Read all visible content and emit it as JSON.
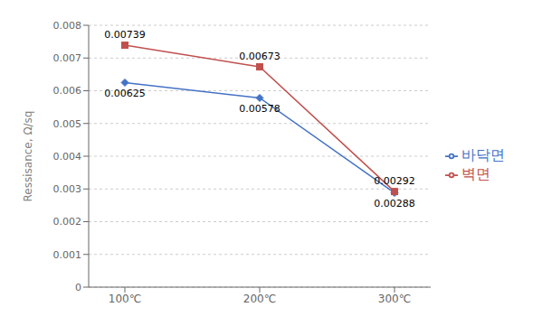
{
  "chart_data": {
    "type": "line",
    "categories": [
      "100℃",
      "200℃",
      "300℃"
    ],
    "series": [
      {
        "name": "바닥면",
        "color": "#4472C4",
        "marker": "diamond",
        "values": [
          0.00625,
          0.00578,
          0.00288
        ]
      },
      {
        "name": "벽면",
        "color": "#C0504D",
        "marker": "square",
        "values": [
          0.00739,
          0.00673,
          0.00292
        ]
      }
    ],
    "ylabel": "Ressisance, Ω/sq",
    "ylim": [
      0,
      0.008
    ],
    "yticks": [
      0,
      0.001,
      0.002,
      0.003,
      0.004,
      0.005,
      0.006,
      0.007,
      0.008
    ],
    "grid": true,
    "legend": "right",
    "data_labels": true
  }
}
